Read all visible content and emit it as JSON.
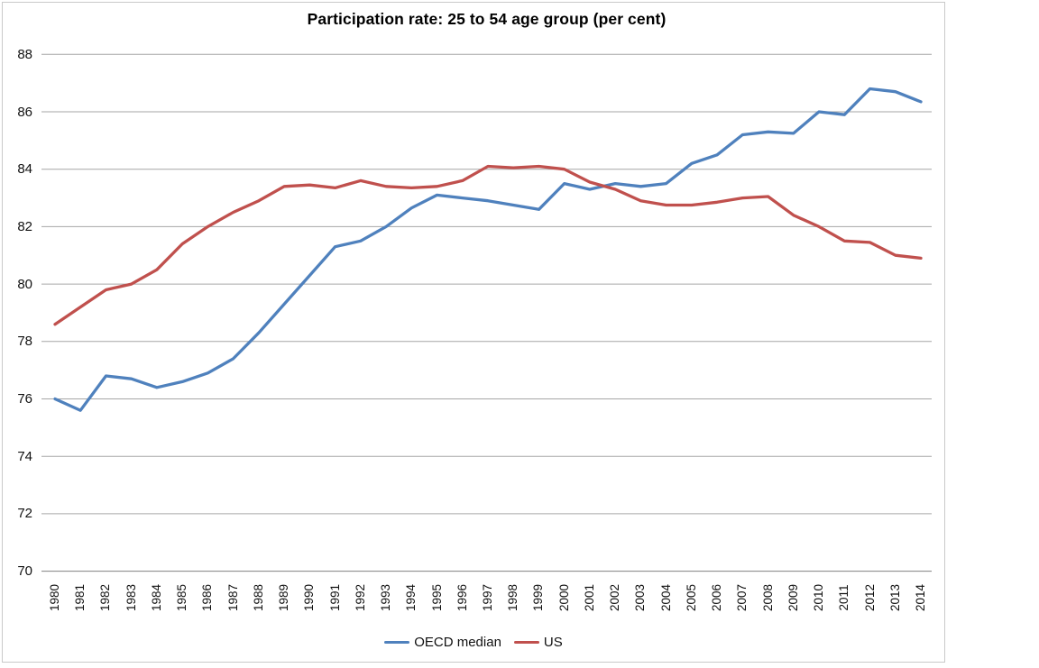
{
  "chart_data": {
    "type": "line",
    "title": "Participation rate: 25 to 54 age group (per cent)",
    "xlabel": "",
    "ylabel": "",
    "categories": [
      "1980",
      "1981",
      "1982",
      "1983",
      "1984",
      "1985",
      "1986",
      "1987",
      "1988",
      "1989",
      "1990",
      "1991",
      "1992",
      "1993",
      "1994",
      "1995",
      "1996",
      "1997",
      "1998",
      "1999",
      "2000",
      "2001",
      "2002",
      "2003",
      "2004",
      "2005",
      "2006",
      "2007",
      "2008",
      "2009",
      "2010",
      "2011",
      "2012",
      "2013",
      "2014"
    ],
    "series": [
      {
        "name": "OECD median",
        "color": "#4F81BD",
        "values": [
          76.0,
          75.6,
          76.8,
          76.7,
          76.4,
          76.6,
          76.9,
          77.4,
          78.3,
          79.3,
          80.3,
          81.3,
          81.5,
          82.0,
          82.65,
          83.1,
          83.0,
          82.9,
          82.75,
          82.6,
          83.5,
          83.3,
          83.5,
          83.4,
          83.5,
          84.2,
          84.5,
          85.2,
          85.3,
          85.25,
          86.0,
          85.9,
          86.8,
          86.7,
          86.35
        ]
      },
      {
        "name": "US",
        "color": "#C0504D",
        "values": [
          78.6,
          79.2,
          79.8,
          80.0,
          80.5,
          81.4,
          82.0,
          82.5,
          82.9,
          83.4,
          83.45,
          83.35,
          83.6,
          83.4,
          83.35,
          83.4,
          83.6,
          84.1,
          84.05,
          84.1,
          84.0,
          83.55,
          83.3,
          82.9,
          82.75,
          82.75,
          82.85,
          83.0,
          83.05,
          82.4,
          82.0,
          81.5,
          81.45,
          81.0,
          80.9
        ]
      }
    ],
    "ylim": [
      70,
      88
    ],
    "yticks": [
      88,
      86,
      84,
      82,
      80,
      78,
      76,
      74,
      72,
      70
    ],
    "grid": true,
    "legend_position": "bottom",
    "colors": {
      "gridline": "#A6A6A6",
      "axis_line": "#808080",
      "frame_border": "#C9C9C9",
      "background": "#FFFFFF",
      "text": "#111111"
    }
  }
}
